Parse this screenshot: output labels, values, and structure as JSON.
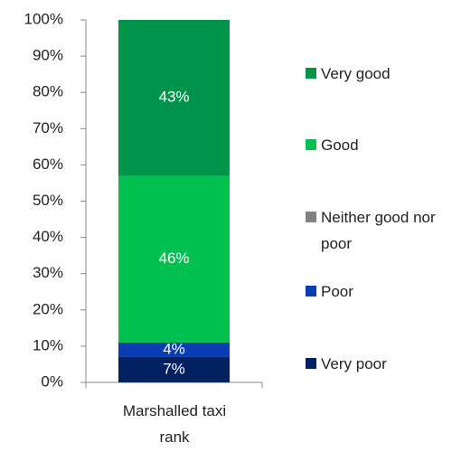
{
  "chart_data": {
    "type": "stacked_bar",
    "categories": [
      "Marshalled taxi rank"
    ],
    "series": [
      {
        "name": "Very poor",
        "color": "#002060",
        "values": [
          7
        ],
        "value_labels": [
          "7%"
        ]
      },
      {
        "name": "Poor",
        "color": "#0a3cb4",
        "values": [
          4
        ],
        "value_labels": [
          "4%"
        ]
      },
      {
        "name": "Neither good nor poor",
        "color": "#808080",
        "values": [
          0
        ]
      },
      {
        "name": "Good",
        "color": "#00c050",
        "values": [
          46
        ],
        "value_labels": [
          "46%"
        ]
      },
      {
        "name": "Very good",
        "color": "#00934a",
        "values": [
          43
        ],
        "value_labels": [
          "43%"
        ]
      }
    ],
    "ylim": [
      0,
      100
    ],
    "yticks": [
      {
        "value": 0,
        "label": "0%"
      },
      {
        "value": 10,
        "label": "10%"
      },
      {
        "value": 20,
        "label": "20%"
      },
      {
        "value": 30,
        "label": "30%"
      },
      {
        "value": 40,
        "label": "40%"
      },
      {
        "value": 50,
        "label": "50%"
      },
      {
        "value": 60,
        "label": "60%"
      },
      {
        "value": 70,
        "label": "70%"
      },
      {
        "value": 80,
        "label": "80%"
      },
      {
        "value": 90,
        "label": "90%"
      },
      {
        "value": 100,
        "label": "100%"
      }
    ],
    "grid": false,
    "legend": "right"
  }
}
